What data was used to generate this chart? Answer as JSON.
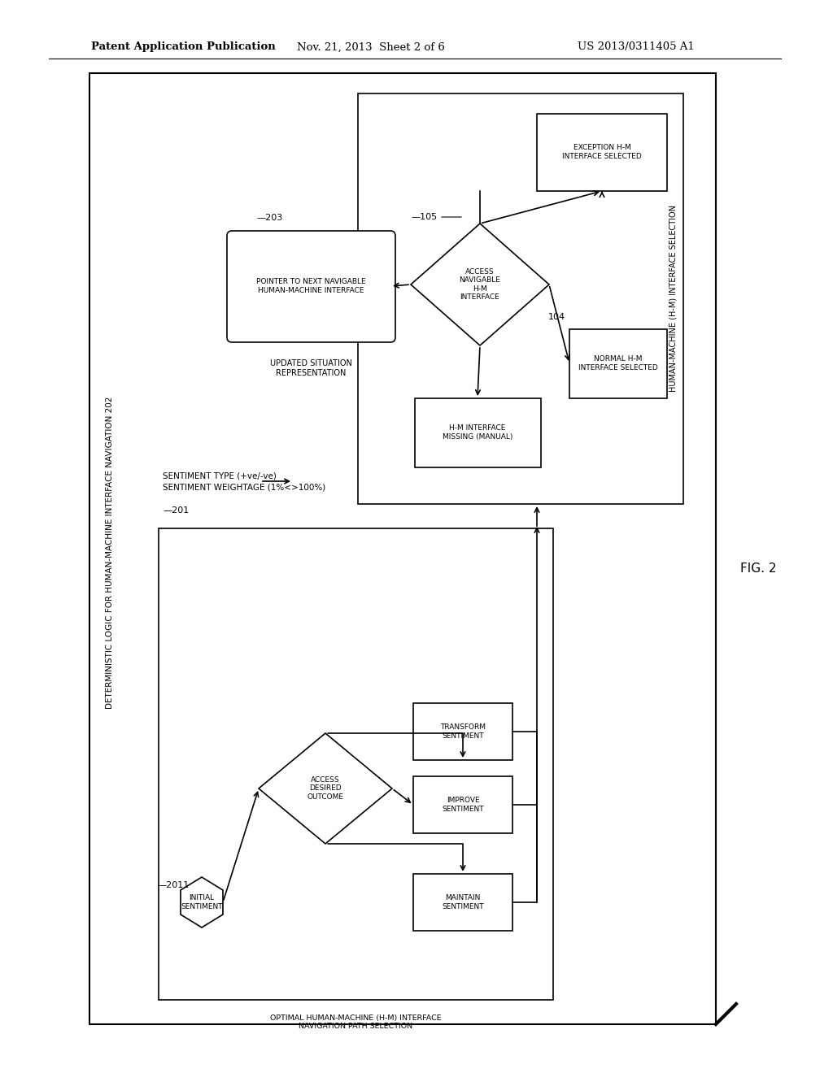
{
  "bg_color": "#ffffff",
  "header_text1": "Patent Application Publication",
  "header_text2": "Nov. 21, 2013  Sheet 2 of 6",
  "header_text3": "US 2013/0311405 A1",
  "fig_label": "FIG. 2",
  "outer_label": "DETERMINISTIC LOGIC FOR HUMAN-MACHINE INTERFACE NAVIGATION 202",
  "inputs_label1": "SENTIMENT WEIGHTAGE (1%<>100%)",
  "inputs_label2": "SENTIMENT TYPE (+ve/-ve)",
  "ref_201": "201",
  "ref_203": "203",
  "ref_104": "104",
  "ref_105": "105",
  "ref_2011": "2011",
  "box_initial_sentiment": "INITIAL\nSENTIMENT",
  "box_optimal_path": "OPTIMAL HUMAN-MACHINE (H-M) INTERFACE\nNAVIGATION PATH SELECTION",
  "diamond_access_desired": "ACCESS\nDESIRED\nOUTCOME",
  "box_transform": "TRANSFORM\nSENTIMENT",
  "box_improve": "IMPROVE\nSENTIMENT",
  "box_maintain": "MAINTAIN\nSENTIMENT",
  "box_pointer": "POINTER TO NEXT NAVIGABLE\nHUMAN-MACHINE INTERFACE",
  "label_updated": "UPDATED SITUATION\nREPRESENTATION",
  "diamond_access_navigable": "ACCESS\nNAVIGABLE\nH-M\nINTERFACE",
  "box_exception": "EXCEPTION H-M\nINTERFACE SELECTED",
  "box_normal": "NORMAL H-M\nINTERFACE SELECTED",
  "box_missing": "H-M INTERFACE\nMISSING (MANUAL)",
  "label_hm_selection": "HUMAN-MACHINE (H-M) INTERFACE SELECTION"
}
